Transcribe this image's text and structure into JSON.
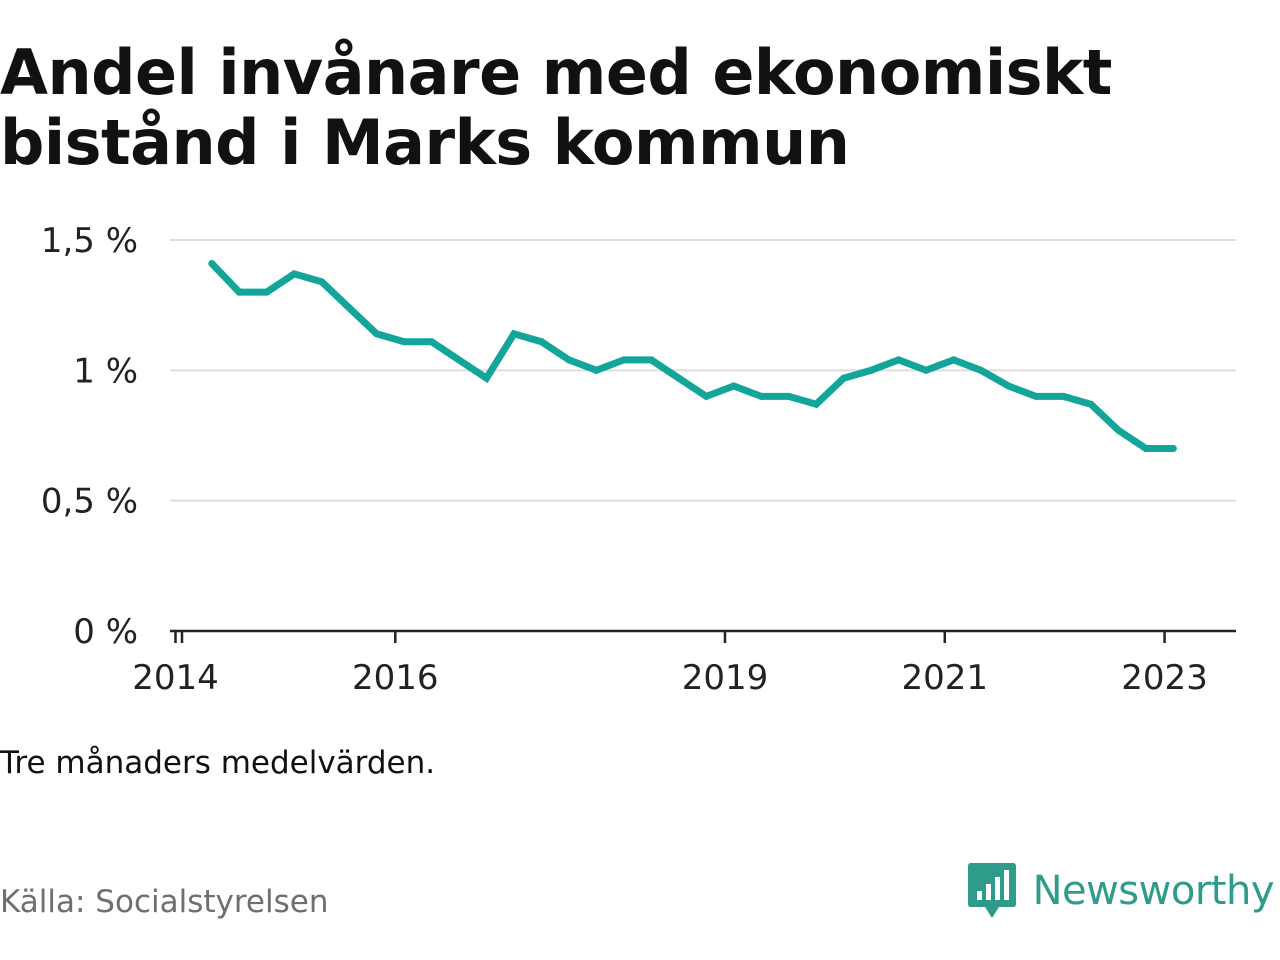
{
  "title": {
    "line1": "Andel invånare med ekonomiskt",
    "line2": "bistånd i Marks kommun"
  },
  "note": "Tre månaders medelvärden.",
  "source": "Källa: Socialstyrelsen",
  "brand": {
    "name": "Newsworthy",
    "icon": "newsworthy-logo-icon",
    "color": "#2f9b8a"
  },
  "chart_data": {
    "type": "line",
    "title": "Andel invånare med ekonomiskt bistånd i Marks kommun",
    "xlabel": "",
    "ylabel": "",
    "xlim": [
      2013.95,
      2023.65
    ],
    "ylim": [
      0,
      1.5
    ],
    "grid": true,
    "line_color": "#13a59a",
    "y_ticks": [
      {
        "value": 0,
        "label": "0 %"
      },
      {
        "value": 0.5,
        "label": "0,5 %"
      },
      {
        "value": 1,
        "label": "1 %"
      },
      {
        "value": 1.5,
        "label": "1,5 %"
      }
    ],
    "x_ticks": [
      {
        "value": 2014,
        "label": "2014"
      },
      {
        "value": 2016,
        "label": "2016"
      },
      {
        "value": 2019,
        "label": "2019"
      },
      {
        "value": 2021,
        "label": "2021"
      },
      {
        "value": 2023,
        "label": "2023"
      }
    ],
    "series": [
      {
        "name": "",
        "x": [
          2014.33,
          2014.58,
          2014.83,
          2015.08,
          2015.33,
          2015.58,
          2015.83,
          2016.08,
          2016.33,
          2016.58,
          2016.83,
          2017.08,
          2017.33,
          2017.58,
          2017.83,
          2018.08,
          2018.33,
          2018.58,
          2018.83,
          2019.08,
          2019.33,
          2019.58,
          2019.83,
          2020.08,
          2020.33,
          2020.58,
          2020.83,
          2021.08,
          2021.33,
          2021.58,
          2021.83,
          2022.08,
          2022.33,
          2022.58,
          2022.83,
          2023.08
        ],
        "values": [
          1.41,
          1.3,
          1.3,
          1.37,
          1.34,
          1.24,
          1.14,
          1.11,
          1.11,
          1.04,
          0.97,
          1.14,
          1.11,
          1.04,
          1.0,
          1.04,
          1.04,
          0.97,
          0.9,
          0.94,
          0.9,
          0.9,
          0.87,
          0.97,
          1.0,
          1.04,
          1.0,
          1.04,
          1.0,
          0.94,
          0.9,
          0.9,
          0.87,
          0.77,
          0.7,
          0.7
        ]
      }
    ]
  }
}
